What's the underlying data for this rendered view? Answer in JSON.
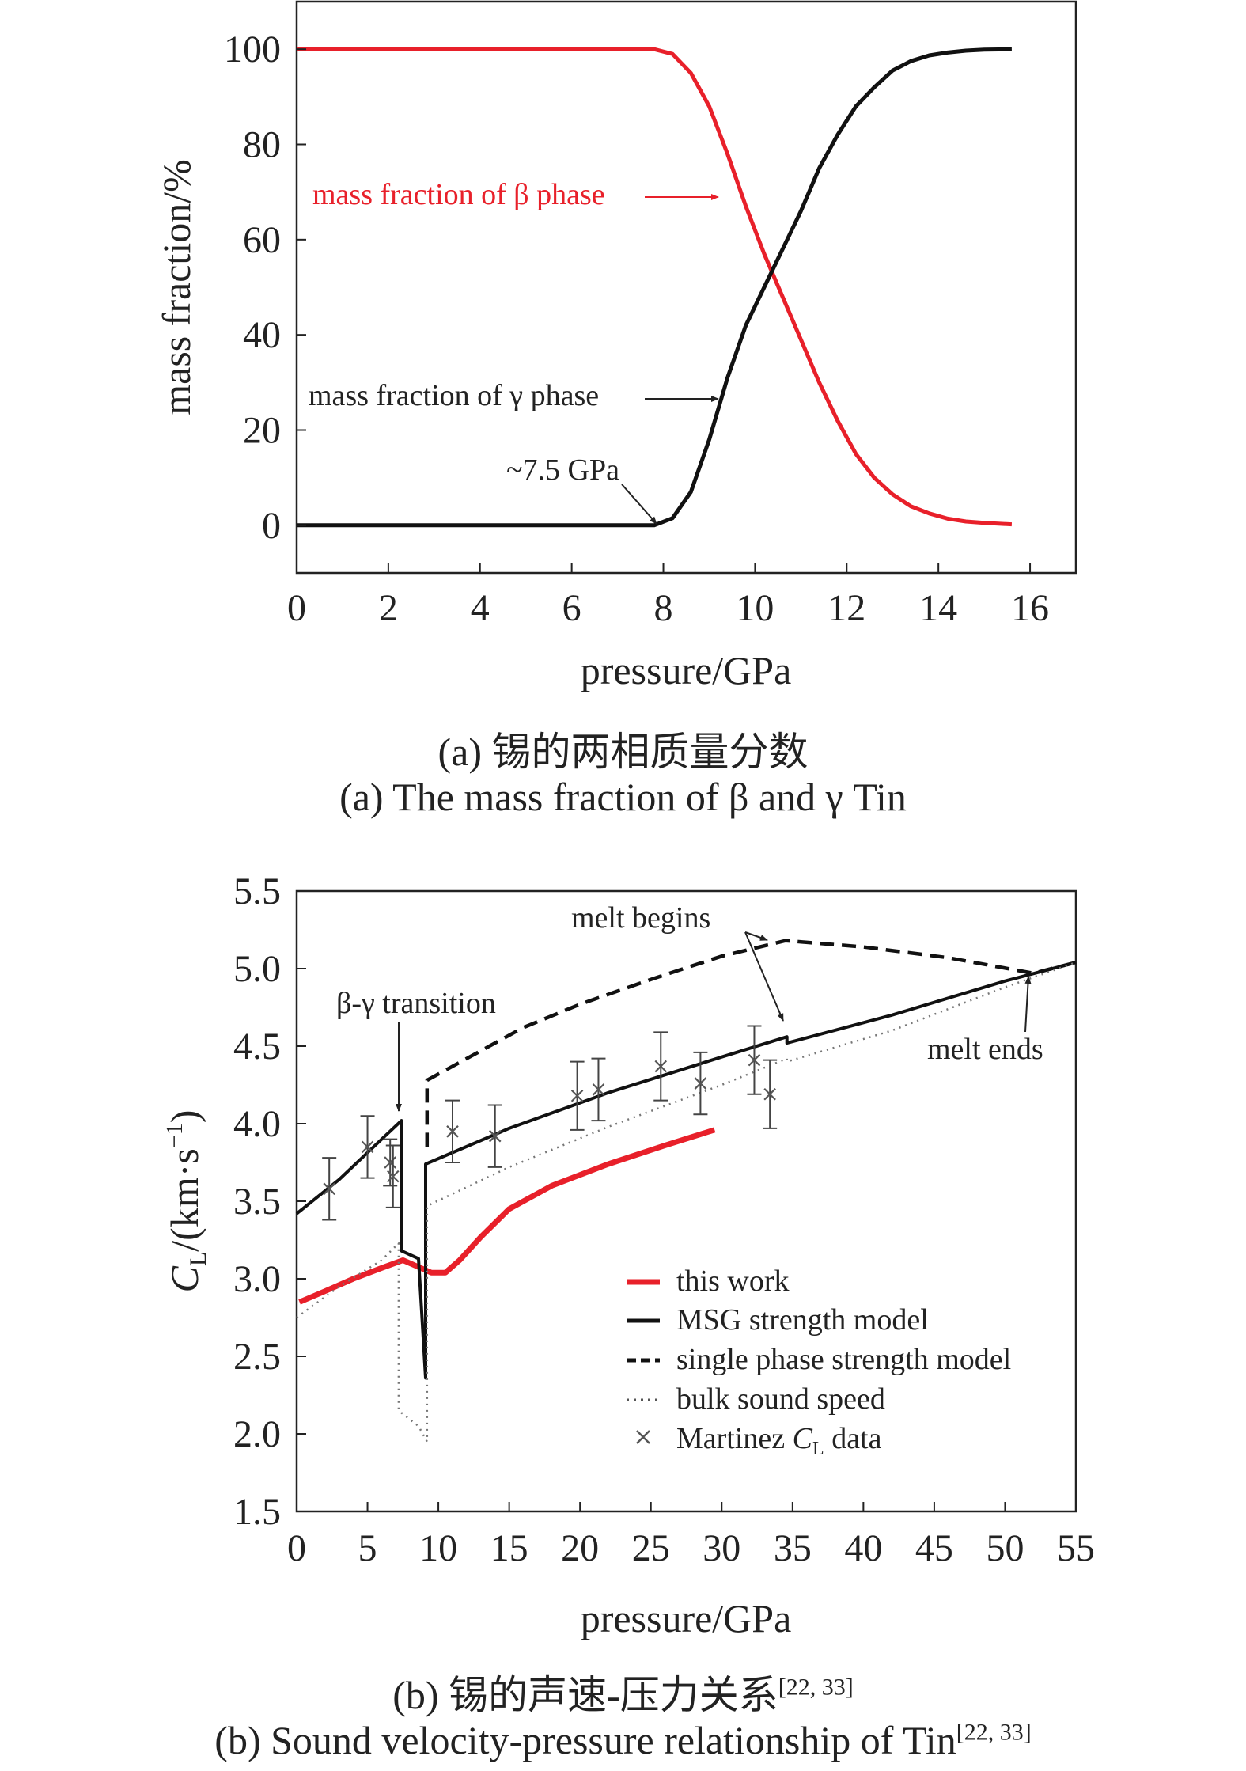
{
  "chart_data": [
    {
      "type": "line",
      "panel": "a",
      "xlabel": "pressure/GPa",
      "ylabel": "mass fraction/%",
      "xlim": [
        0,
        17
      ],
      "ylim": [
        -10,
        110
      ],
      "xticks": [
        0,
        2,
        4,
        6,
        8,
        10,
        12,
        14,
        16
      ],
      "yticks": [
        0,
        20,
        40,
        60,
        80,
        100
      ],
      "caption_cn": "(a) 锡的两相质量分数",
      "caption_en": "(a) The mass fraction of β and γ Tin",
      "series": [
        {
          "name": "mass fraction of β phase",
          "color": "#e8202a",
          "x": [
            0,
            7.8,
            8.2,
            8.6,
            9.0,
            9.4,
            9.8,
            10.2,
            10.6,
            11.0,
            11.4,
            11.8,
            12.2,
            12.6,
            13.0,
            13.4,
            13.8,
            14.2,
            14.6,
            15.0,
            15.6
          ],
          "y": [
            100,
            100,
            99,
            95,
            88,
            78,
            67,
            57,
            48,
            39,
            30,
            22,
            15,
            10,
            6.5,
            4,
            2.5,
            1.4,
            0.8,
            0.5,
            0.2
          ]
        },
        {
          "name": "mass fraction of γ phase",
          "color": "#111111",
          "x": [
            0,
            7.8,
            8.2,
            8.6,
            9.0,
            9.4,
            9.8,
            10.2,
            10.6,
            11.0,
            11.4,
            11.8,
            12.2,
            12.6,
            13.0,
            13.4,
            13.8,
            14.2,
            14.6,
            15.0,
            15.6
          ],
          "y": [
            0,
            0,
            1.5,
            7,
            18,
            31,
            42,
            50,
            58,
            66,
            75,
            82,
            88,
            92,
            95.5,
            97.5,
            98.7,
            99.3,
            99.7,
            99.9,
            100
          ]
        }
      ],
      "annotations": [
        {
          "text": "mass fraction of β phase",
          "color": "#e8202a"
        },
        {
          "text": "mass fraction of γ phase",
          "color": "#222222"
        },
        {
          "text": "~7.5 GPa",
          "color": "#222222"
        }
      ]
    },
    {
      "type": "line",
      "panel": "b",
      "xlabel": "pressure/GPa",
      "ylabel": "CL/(km·s−1)",
      "xlim": [
        0,
        55
      ],
      "ylim": [
        1.5,
        5.5
      ],
      "xticks": [
        0,
        5,
        10,
        15,
        20,
        25,
        30,
        35,
        40,
        45,
        50,
        55
      ],
      "yticks": [
        1.5,
        2.0,
        2.5,
        3.0,
        3.5,
        4.0,
        4.5,
        5.0,
        5.5
      ],
      "caption_cn": "(b) 锡的声速-压力关系",
      "caption_en": "(b) Sound velocity-pressure relationship of Tin",
      "caption_ref": "[22, 33]",
      "legend": "center-right",
      "series": [
        {
          "name": "this work",
          "style": "solid",
          "color": "#e8202a",
          "x": [
            0.2,
            2,
            4,
            6,
            7.5,
            8.5,
            9.5,
            10.5,
            11.5,
            13,
            15,
            18,
            22,
            26,
            29.5
          ],
          "y": [
            2.85,
            2.92,
            3.0,
            3.07,
            3.12,
            3.08,
            3.04,
            3.04,
            3.12,
            3.27,
            3.45,
            3.6,
            3.74,
            3.86,
            3.96
          ]
        },
        {
          "name": "MSG strength model",
          "style": "solid",
          "color": "#111111",
          "x": [
            0,
            3,
            6,
            7.4,
            7.4,
            8.6,
            9.1,
            9.1,
            15,
            22,
            30,
            34.6,
            34.6,
            42,
            50,
            55
          ],
          "y": [
            3.42,
            3.64,
            3.9,
            4.02,
            3.18,
            3.13,
            2.36,
            3.74,
            3.97,
            4.2,
            4.43,
            4.56,
            4.52,
            4.7,
            4.92,
            5.04
          ]
        },
        {
          "name": "single phase strength model",
          "style": "dashed",
          "color": "#111111",
          "x": [
            9.2,
            9.2,
            12,
            16,
            20,
            25,
            30,
            34.5,
            40,
            46,
            52,
            55
          ],
          "y": [
            3.85,
            4.28,
            4.42,
            4.62,
            4.77,
            4.93,
            5.08,
            5.18,
            5.14,
            5.07,
            4.97,
            5.04
          ]
        },
        {
          "name": "bulk sound speed",
          "style": "dotted",
          "color": "#777777",
          "x": [
            0,
            3,
            6,
            7.2,
            7.2,
            8.6,
            9.2,
            9.2,
            15,
            22,
            30,
            34.6,
            34.6,
            42,
            50,
            55
          ],
          "y": [
            2.75,
            2.95,
            3.12,
            3.23,
            2.15,
            2.05,
            1.95,
            3.47,
            3.72,
            3.98,
            4.25,
            4.42,
            4.4,
            4.6,
            4.88,
            5.04
          ]
        },
        {
          "name": "Martinez CL data",
          "style": "markers",
          "color": "#555555",
          "x": [
            2.3,
            5,
            6.6,
            6.8,
            11,
            14,
            19.8,
            21.3,
            25.7,
            28.5,
            32.3,
            33.4
          ],
          "y": [
            3.58,
            3.85,
            3.75,
            3.66,
            3.95,
            3.92,
            4.18,
            4.22,
            4.37,
            4.26,
            4.41,
            4.19
          ],
          "err": [
            0.2,
            0.2,
            0.15,
            0.2,
            0.2,
            0.2,
            0.22,
            0.2,
            0.22,
            0.2,
            0.22,
            0.22
          ]
        }
      ],
      "annotations": [
        {
          "text": "β-γ transition"
        },
        {
          "text": "melt begins"
        },
        {
          "text": "melt ends"
        }
      ]
    }
  ]
}
